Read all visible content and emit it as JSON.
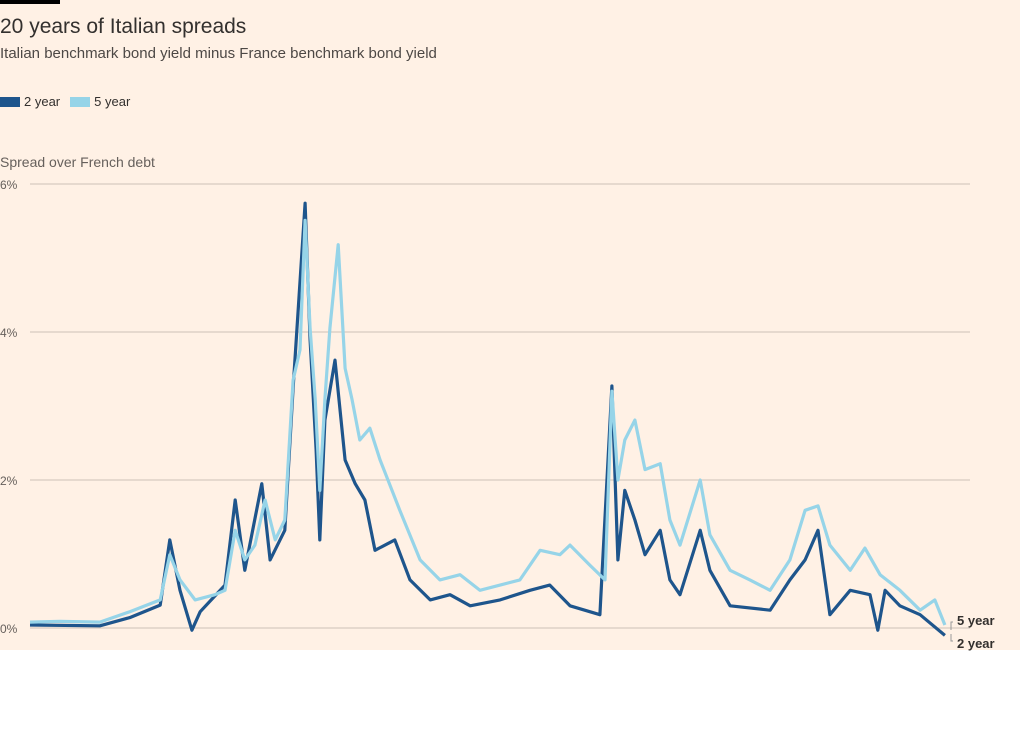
{
  "title": "20 years of Italian spreads",
  "subtitle": "Italian benchmark bond yield minus France benchmark bond yield",
  "chart_data": {
    "type": "line",
    "title": "20 years of Italian spreads",
    "ylabel": "Spread over French debt",
    "xlabel": "",
    "xunit": "years from start of period (approx.)",
    "xlim": [
      0,
      20
    ],
    "ylim": [
      0,
      6
    ],
    "yticks": [
      {
        "v": 0,
        "label": "0%"
      },
      {
        "v": 2,
        "label": "2%"
      },
      {
        "v": 4,
        "label": "4%"
      },
      {
        "v": 6,
        "label": "6%"
      }
    ],
    "grid": true,
    "legend": {
      "placement": "top-left",
      "entries": [
        "2 year",
        "5 year"
      ]
    },
    "series": [
      {
        "name": "2 year",
        "color": "#1e558c",
        "end_label": "2 year",
        "x": [
          0,
          1.52,
          2.17,
          2.83,
          3.04,
          3.26,
          3.52,
          3.7,
          4.24,
          4.46,
          4.67,
          5.04,
          5.22,
          5.54,
          5.72,
          5.98,
          6.09,
          6.22,
          6.3,
          6.41,
          6.63,
          6.85,
          7.07,
          7.28,
          7.5,
          7.93,
          8.26,
          8.7,
          9.13,
          9.57,
          10.22,
          10.87,
          11.3,
          11.74,
          12.39,
          12.65,
          12.78,
          12.93,
          13.15,
          13.37,
          13.7,
          13.91,
          14.13,
          14.57,
          14.78,
          15.22,
          16.09,
          16.52,
          16.85,
          17.13,
          17.39,
          17.83,
          18.26,
          18.43,
          18.59,
          18.91,
          19.35,
          19.89
        ],
        "y": [
          0.04,
          0.03,
          0.14,
          0.31,
          1.19,
          0.51,
          -0.03,
          0.22,
          0.58,
          1.73,
          0.78,
          1.95,
          0.92,
          1.32,
          3.24,
          5.74,
          3.89,
          2.41,
          1.19,
          2.81,
          3.62,
          2.27,
          1.95,
          1.73,
          1.05,
          1.19,
          0.65,
          0.38,
          0.45,
          0.3,
          0.38,
          0.51,
          0.58,
          0.3,
          0.18,
          3.27,
          0.92,
          1.86,
          1.46,
          0.99,
          1.32,
          0.65,
          0.45,
          1.32,
          0.78,
          0.3,
          0.24,
          0.65,
          0.92,
          1.32,
          0.18,
          0.51,
          0.45,
          -0.03,
          0.51,
          0.3,
          0.18,
          -0.1
        ]
      },
      {
        "name": "5 year",
        "color": "#96d4e8",
        "end_label": "5 year",
        "x": [
          0,
          0.65,
          1.52,
          2.17,
          2.83,
          3.04,
          3.26,
          3.59,
          4.02,
          4.24,
          4.46,
          4.67,
          4.89,
          5.11,
          5.33,
          5.54,
          5.72,
          5.87,
          5.98,
          6.09,
          6.2,
          6.3,
          6.41,
          6.52,
          6.7,
          6.85,
          7.0,
          7.17,
          7.39,
          7.61,
          8.04,
          8.48,
          8.91,
          9.35,
          9.78,
          10.22,
          10.65,
          11.09,
          11.52,
          11.74,
          12.17,
          12.5,
          12.65,
          12.78,
          12.93,
          13.15,
          13.37,
          13.7,
          13.91,
          14.13,
          14.57,
          14.78,
          15.22,
          15.65,
          16.09,
          16.52,
          16.85,
          17.13,
          17.39,
          17.83,
          18.15,
          18.48,
          18.91,
          19.35,
          19.67,
          19.89
        ],
        "y": [
          0.08,
          0.09,
          0.08,
          0.22,
          0.38,
          0.99,
          0.65,
          0.38,
          0.45,
          0.51,
          1.32,
          0.92,
          1.12,
          1.73,
          1.19,
          1.46,
          3.35,
          3.76,
          5.51,
          4.05,
          3.09,
          1.86,
          3.09,
          4.05,
          5.18,
          3.51,
          3.09,
          2.54,
          2.7,
          2.27,
          1.59,
          0.92,
          0.65,
          0.72,
          0.51,
          0.58,
          0.65,
          1.05,
          0.99,
          1.12,
          0.85,
          0.65,
          3.2,
          2.0,
          2.54,
          2.81,
          2.14,
          2.22,
          1.46,
          1.12,
          2.0,
          1.26,
          0.78,
          0.65,
          0.51,
          0.92,
          1.59,
          1.65,
          1.12,
          0.78,
          1.08,
          0.72,
          0.51,
          0.24,
          0.38,
          0.04
        ]
      }
    ]
  }
}
